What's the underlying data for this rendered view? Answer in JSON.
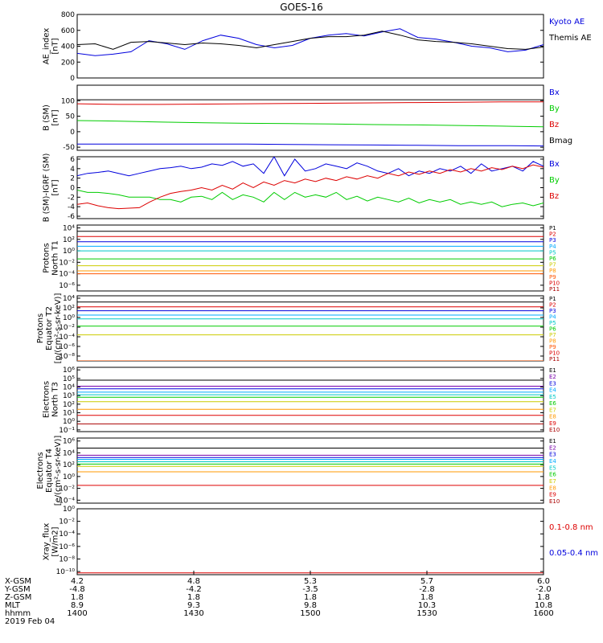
{
  "title": "GOES-16",
  "colors": {
    "black": "#000000",
    "blue": "#0000dd",
    "green": "#00cc00",
    "red": "#dd0000",
    "purple": "#7700aa",
    "cyan": "#00c8c8",
    "yellow": "#cccc00",
    "orange": "#ff9900"
  },
  "chart_data": [
    {
      "type": "line",
      "ylabel_lines": [
        "AE_index",
        "[nT]"
      ],
      "yticks": [
        "0",
        "200",
        "400",
        "600",
        "800"
      ],
      "ylim": [
        0,
        800
      ],
      "series": [
        {
          "name": "Kyoto AE",
          "color": "#0000dd",
          "y": [
            310,
            280,
            300,
            330,
            470,
            430,
            360,
            470,
            540,
            500,
            420,
            380,
            410,
            500,
            540,
            560,
            530,
            580,
            620,
            510,
            490,
            450,
            400,
            380,
            330,
            350,
            420
          ]
        },
        {
          "name": "Themis AE",
          "color": "#000000",
          "y": [
            420,
            430,
            360,
            450,
            460,
            440,
            420,
            440,
            430,
            410,
            380,
            420,
            460,
            500,
            520,
            520,
            540,
            590,
            540,
            480,
            460,
            450,
            430,
            400,
            370,
            360,
            390
          ]
        }
      ]
    },
    {
      "type": "line",
      "ylabel_lines": [
        "B (SM)",
        "[nT]"
      ],
      "yticks": [
        "-50",
        "0",
        "50",
        "100"
      ],
      "ylim": [
        -60,
        150
      ],
      "series": [
        {
          "name": "Bx",
          "color": "#0000dd",
          "y": [
            -40,
            -40,
            -40,
            -40,
            -40,
            -41,
            -42,
            -43,
            -44,
            -45,
            -45,
            -46
          ]
        },
        {
          "name": "By",
          "color": "#00cc00",
          "y": [
            36,
            34,
            31,
            29,
            27,
            26,
            25,
            23,
            22,
            20,
            18,
            16
          ]
        },
        {
          "name": "Bz",
          "color": "#dd0000",
          "y": [
            90,
            88,
            88,
            89,
            90,
            91,
            92,
            93,
            94,
            95,
            96,
            96
          ]
        },
        {
          "name": "Bmag",
          "color": "#000000",
          "y": [
            103,
            103,
            103,
            103,
            103,
            103,
            103,
            103,
            103,
            103,
            103,
            103
          ]
        }
      ]
    },
    {
      "type": "line",
      "ylabel_lines": [
        "B (SM)-IGRF (SM)",
        "[nT]"
      ],
      "yticks": [
        "-6",
        "-4",
        "-2",
        "0",
        "2",
        "4",
        "6"
      ],
      "ylim": [
        -6.5,
        6.5
      ],
      "series": [
        {
          "name": "Bx",
          "color": "#0000dd",
          "y": [
            2.5,
            3,
            3.2,
            3.5,
            3,
            2.5,
            3,
            3.5,
            4,
            4.2,
            4.5,
            4,
            4.3,
            5,
            4.7,
            5.5,
            4.5,
            5,
            3,
            6.5,
            2.5,
            6,
            3.5,
            4,
            5,
            4.5,
            4,
            5.2,
            4.5,
            3.5,
            3,
            4,
            2.5,
            3.5,
            3,
            4,
            3.5,
            4.5,
            3,
            5,
            3.5,
            4,
            4.5,
            3.5,
            5.5,
            4.5
          ]
        },
        {
          "name": "By",
          "color": "#00cc00",
          "y": [
            -0.5,
            -1,
            -1,
            -1.2,
            -1.5,
            -2,
            -2,
            -2,
            -2.5,
            -2.5,
            -3,
            -2,
            -1.8,
            -2.5,
            -1,
            -2.5,
            -1.5,
            -2,
            -3,
            -1,
            -2.5,
            -1,
            -2,
            -1.5,
            -2,
            -1,
            -2.5,
            -1.8,
            -2.8,
            -2,
            -2.5,
            -3,
            -2.2,
            -3.2,
            -2.5,
            -3,
            -2.5,
            -3.5,
            -3,
            -3.5,
            -3,
            -4,
            -3.5,
            -3.2,
            -3.8,
            -3.2
          ]
        },
        {
          "name": "Bz",
          "color": "#dd0000",
          "y": [
            -3.5,
            -3.2,
            -3.8,
            -4.2,
            -4.4,
            -4.3,
            -4.2,
            -3,
            -2,
            -1.2,
            -0.8,
            -0.5,
            0,
            -0.5,
            0.5,
            -0.3,
            1,
            0,
            1.2,
            0.5,
            1.5,
            1,
            1.8,
            1.3,
            2,
            1.5,
            2.3,
            1.8,
            2.5,
            2,
            3,
            2.5,
            3.3,
            2.8,
            3.5,
            3,
            3.8,
            3.3,
            4,
            3.5,
            4.2,
            3.8,
            4.5,
            4,
            4.8,
            4.3
          ]
        }
      ]
    },
    {
      "type": "line",
      "ylabel_lines": [
        "Protons",
        "North T1"
      ],
      "log": true,
      "yticks": [
        "10⁻⁶",
        "10⁻⁴",
        "10⁻²",
        "10⁰",
        "10²",
        "10⁴"
      ],
      "ylim": [
        -7,
        4.5
      ],
      "series": [
        {
          "name": "P1",
          "color": "#000000",
          "y": 3.4
        },
        {
          "name": "P2",
          "color": "#dd0000",
          "y": 2.5
        },
        {
          "name": "P3",
          "color": "#0000dd",
          "y": 1.6
        },
        {
          "name": "P4",
          "color": "#00aaff",
          "y": 0.8
        },
        {
          "name": "P5",
          "color": "#00c8c8",
          "y": 0
        },
        {
          "name": "P6",
          "color": "#00cc00",
          "y": -1.4
        },
        {
          "name": "P7",
          "color": "#cccc00",
          "y": -2.6
        },
        {
          "name": "P8",
          "color": "#ff9900",
          "y": -3.5
        },
        {
          "name": "P9",
          "color": "#ff5500",
          "y": -4
        },
        {
          "name": "P10",
          "color": "#dd0000",
          "y": -9
        },
        {
          "name": "P11",
          "color": "#aa0000",
          "y": -9
        }
      ]
    },
    {
      "type": "line",
      "ylabel_lines": [
        "Protons",
        "Equator T2",
        "[p/(cm²-s-sr-keV)]"
      ],
      "log": true,
      "yticks": [
        "10⁻⁸",
        "10⁻⁶",
        "10⁻⁴",
        "10⁻²",
        "10⁰",
        "10²",
        "10⁴"
      ],
      "ylim": [
        -9,
        4.5
      ],
      "series": [
        {
          "name": "P1",
          "color": "#000000",
          "y": 3.2
        },
        {
          "name": "P2",
          "color": "#dd0000",
          "y": 2.2
        },
        {
          "name": "P3",
          "color": "#0000dd",
          "y": 1.4
        },
        {
          "name": "P4",
          "color": "#00aaff",
          "y": 0.5
        },
        {
          "name": "P5",
          "color": "#00c8c8",
          "y": -0.3
        },
        {
          "name": "P6",
          "color": "#00cc00",
          "y": -1.8
        },
        {
          "name": "P7",
          "color": "#cccc00",
          "y": -3.6
        },
        {
          "name": "P8",
          "color": "#ff9900",
          "y": -9
        },
        {
          "name": "P9",
          "color": "#ff5500",
          "y": -9
        },
        {
          "name": "P10",
          "color": "#dd0000",
          "y": -10
        },
        {
          "name": "P11",
          "color": "#aa0000",
          "y": -10
        }
      ]
    },
    {
      "type": "line",
      "ylabel_lines": [
        "Electrons",
        "North T3"
      ],
      "log": true,
      "yticks": [
        "10⁻¹",
        "10⁰",
        "10¹",
        "10²",
        "10³",
        "10⁴",
        "10⁵",
        "10⁶"
      ],
      "ylim": [
        -1.2,
        6.3
      ],
      "series": [
        {
          "name": "E1",
          "color": "#000000",
          "y": 4.8
        },
        {
          "name": "E2",
          "color": "#7700aa",
          "y": 4.1
        },
        {
          "name": "E3",
          "color": "#0000dd",
          "y": 3.8
        },
        {
          "name": "E4",
          "color": "#00aaff",
          "y": 3.4
        },
        {
          "name": "E5",
          "color": "#00c8c8",
          "y": 3.1
        },
        {
          "name": "E6",
          "color": "#00cc00",
          "y": 2.8
        },
        {
          "name": "E7",
          "color": "#cccc00",
          "y": 2.3
        },
        {
          "name": "E8",
          "color": "#ff9900",
          "y": 1.4
        },
        {
          "name": "E9",
          "color": "#dd0000",
          "y": 0.7
        },
        {
          "name": "E10",
          "color": "#aa0000",
          "y": -0.3
        }
      ]
    },
    {
      "type": "line",
      "ylabel_lines": [
        "Electrons",
        "Equator T4",
        "[e/(cm²-s-sr-keV)]"
      ],
      "log": true,
      "yticks": [
        "10⁻⁴",
        "10⁻²",
        "10⁰",
        "10²",
        "10⁴",
        "10⁶"
      ],
      "ylim": [
        -4.5,
        6.5
      ],
      "series": [
        {
          "name": "E1",
          "color": "#000000",
          "y": 4.8
        },
        {
          "name": "E2",
          "color": "#7700aa",
          "y": 3.6
        },
        {
          "name": "E3",
          "color": "#0000dd",
          "y": 3.2
        },
        {
          "name": "E4",
          "color": "#00aaff",
          "y": 2.9
        },
        {
          "name": "E5",
          "color": "#00c8c8",
          "y": 2.5
        },
        {
          "name": "E6",
          "color": "#00cc00",
          "y": 2.1
        },
        {
          "name": "E7",
          "color": "#cccc00",
          "y": 1.7
        },
        {
          "name": "E8",
          "color": "#ff9900",
          "y": 0.8
        },
        {
          "name": "E9",
          "color": "#dd0000",
          "y": -1.5
        },
        {
          "name": "E10",
          "color": "#aa0000",
          "y": -6
        }
      ]
    },
    {
      "type": "line",
      "ylabel_lines": [
        "Xray_flux",
        "[W/m2]"
      ],
      "log": true,
      "yticks": [
        "10⁻¹⁰",
        "10⁻⁸",
        "10⁻⁶",
        "10⁻⁴",
        "10⁻²",
        "10⁰"
      ],
      "ylim": [
        -10.5,
        0
      ],
      "series": [
        {
          "name": "0.1-0.8 nm",
          "color": "#dd0000",
          "y": -10.2
        },
        {
          "name": "0.05-0.4 nm",
          "color": "#0000dd",
          "y": -12
        }
      ]
    }
  ],
  "xaxis": {
    "row_labels": [
      "X-GSM",
      "Y-GSM",
      "Z-GSM",
      "MLT",
      "hhmm",
      "2019 Feb 04"
    ],
    "columns": [
      [
        "4.2",
        "-4.8",
        "1.8",
        "8.9",
        "1400"
      ],
      [
        "4.8",
        "-4.2",
        "1.8",
        "9.3",
        "1430"
      ],
      [
        "5.3",
        "-3.5",
        "1.8",
        "9.8",
        "1500"
      ],
      [
        "5.7",
        "-2.8",
        "1.8",
        "10.3",
        "1530"
      ],
      [
        "6.0",
        "-2.0",
        "1.8",
        "10.8",
        "1600"
      ]
    ]
  }
}
